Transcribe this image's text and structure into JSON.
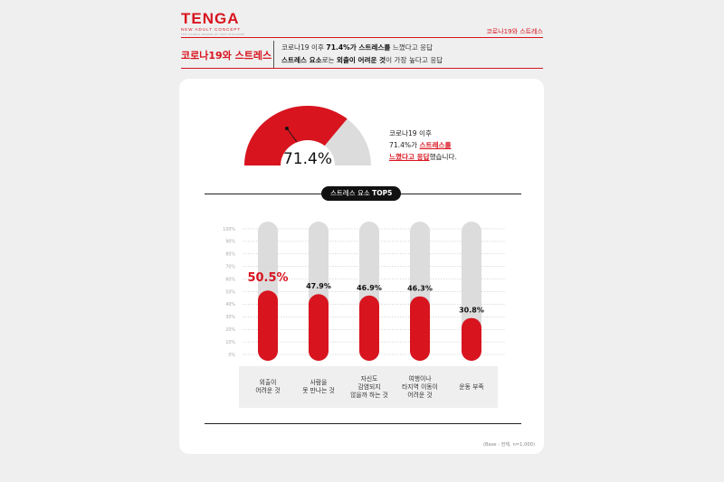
{
  "brand": {
    "logo": "TENGA",
    "tagline": "NEW ADULT CONCEPT",
    "small_text": "THE GLOBAL BRAND OF SELF PLEASURE"
  },
  "header": {
    "section_tag": "코로나19와 스트레스",
    "title": "코로나19와 스트레스",
    "summary_line1_pre": "코로나19 이후 ",
    "summary_line1_bold": "71.4%가 스트레스를",
    "summary_line1_post": " 느꼈다고 응답",
    "summary_line2_bold1": "스트레스 요소",
    "summary_line2_mid": "로는 ",
    "summary_line2_bold2": "외출이 어려운 것",
    "summary_line2_post": "이 가장 높다고 응답"
  },
  "gauge": {
    "value": 71.4,
    "label": "71.4%",
    "note_line1": "코로나19 이후",
    "note_line2_pre": "71.4%가 ",
    "note_line2_hl": "스트레스를",
    "note_line3_hl": "느꼈다고 응답",
    "note_line3_post": "했습니다."
  },
  "colors": {
    "accent": "#d8141f",
    "track": "#dcdcdc",
    "text": "#222222"
  },
  "section_pill": {
    "pre": "스트레스 요소 ",
    "bold": "TOP5"
  },
  "chart_data": {
    "type": "bar",
    "categories": [
      "외출이\n어려운 것",
      "사람을\n못 만나는 것",
      "자신도\n감염되지\n않을까 하는 것",
      "여행이나\n타지역 이동이\n어려운 것",
      "운동 부족"
    ],
    "values": [
      50.5,
      47.9,
      46.9,
      46.3,
      30.8
    ],
    "value_labels": [
      "50.5%",
      "47.9%",
      "46.9%",
      "46.3%",
      "30.8%"
    ],
    "yticks": [
      "0%",
      "10%",
      "20%",
      "30%",
      "40%",
      "50%",
      "60%",
      "70%",
      "80%",
      "90%",
      "100%"
    ],
    "ylim": [
      0,
      100
    ],
    "grid": true
  },
  "footnote": "(Base : 전체, n=1,000)"
}
